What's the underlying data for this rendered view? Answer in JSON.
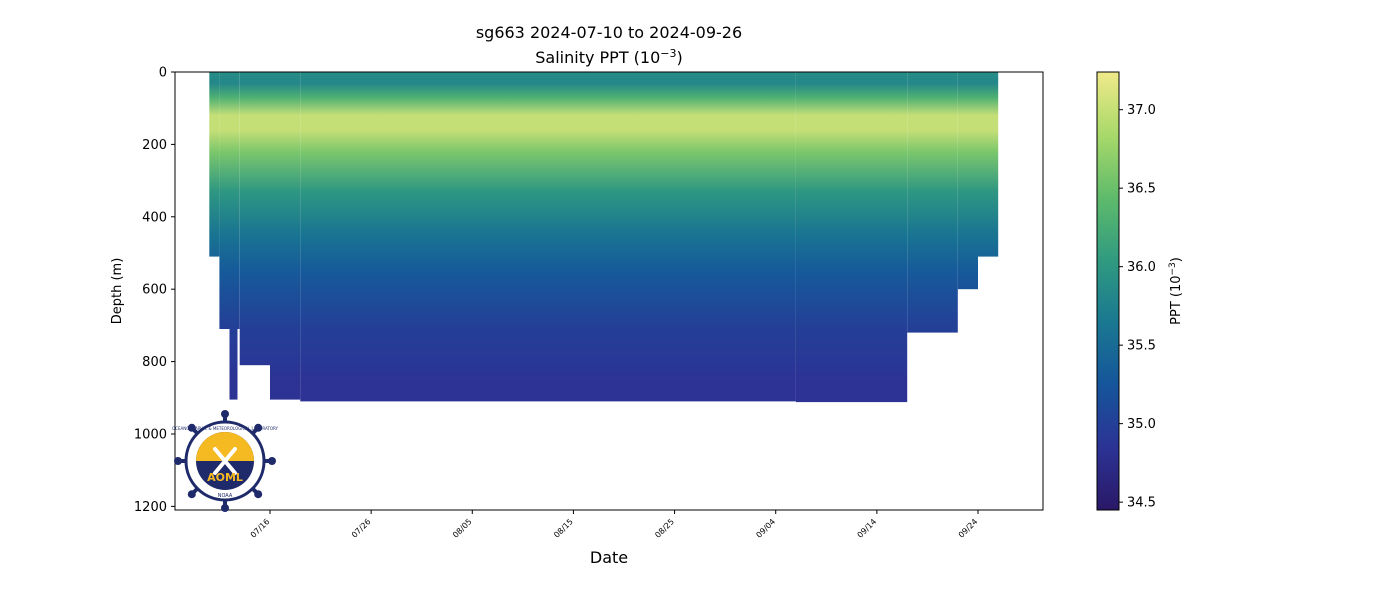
{
  "chart_data": {
    "type": "heatmap",
    "title": "sg663 2024-07-10 to 2024-09-26",
    "subtitle_prefix": "Salinity PPT (10",
    "subtitle_exp": "−3",
    "subtitle_suffix": ")",
    "xlabel": "Date",
    "ylabel": "Depth (m)",
    "x_ticks": [
      "07/16",
      "07/26",
      "08/05",
      "08/15",
      "08/25",
      "09/04",
      "09/14",
      "09/24"
    ],
    "y_ticks": [
      0,
      200,
      400,
      600,
      800,
      1000,
      1200
    ],
    "ylim": [
      1210,
      0
    ],
    "colorbar": {
      "label_prefix": "PPT (10",
      "label_exp": "−3",
      "label_suffix": ")",
      "ticks": [
        34.5,
        35.0,
        35.5,
        36.0,
        36.5,
        37.0
      ],
      "vmin": 34.45,
      "vmax": 37.24,
      "colormap": [
        "#2a1866",
        "#2c3395",
        "#15559b",
        "#1a7891",
        "#309b80",
        "#5fbb6b",
        "#a9d96a",
        "#f0e98a"
      ]
    },
    "depth_profile": [
      {
        "depth": 0,
        "salinity": 35.9
      },
      {
        "depth": 30,
        "salinity": 35.8
      },
      {
        "depth": 70,
        "salinity": 36.3
      },
      {
        "depth": 120,
        "salinity": 37.0
      },
      {
        "depth": 160,
        "salinity": 37.0
      },
      {
        "depth": 220,
        "salinity": 36.6
      },
      {
        "depth": 330,
        "salinity": 36.0
      },
      {
        "depth": 450,
        "salinity": 35.6
      },
      {
        "depth": 550,
        "salinity": 35.3
      },
      {
        "depth": 700,
        "salinity": 35.0
      },
      {
        "depth": 850,
        "salinity": 34.85
      },
      {
        "depth": 910,
        "salinity": 34.85
      }
    ],
    "coverage": [
      {
        "start": "07/10",
        "end": "07/11",
        "max_depth": 510
      },
      {
        "start": "07/11",
        "end": "07/12",
        "max_depth": 710
      },
      {
        "start": "07/12",
        "end": "07/12",
        "max_depth": 905
      },
      {
        "start": "07/12",
        "end": "07/13",
        "max_depth": 710
      },
      {
        "start": "07/13",
        "end": "07/16",
        "max_depth": 810
      },
      {
        "start": "07/16",
        "end": "07/19",
        "max_depth": 905
      },
      {
        "start": "07/19",
        "end": "09/06",
        "max_depth": 910
      },
      {
        "start": "09/06",
        "end": "09/17",
        "max_depth": 912
      },
      {
        "start": "09/17",
        "end": "09/22",
        "max_depth": 720
      },
      {
        "start": "09/22",
        "end": "09/24",
        "max_depth": 600
      },
      {
        "start": "09/24",
        "end": "09/26",
        "max_depth": 510
      }
    ]
  },
  "logo": {
    "name": "AOML",
    "ring_text": "OCEANOGRAPHIC & METEOROLOGICAL LABORATORY",
    "org": "NOAA"
  }
}
